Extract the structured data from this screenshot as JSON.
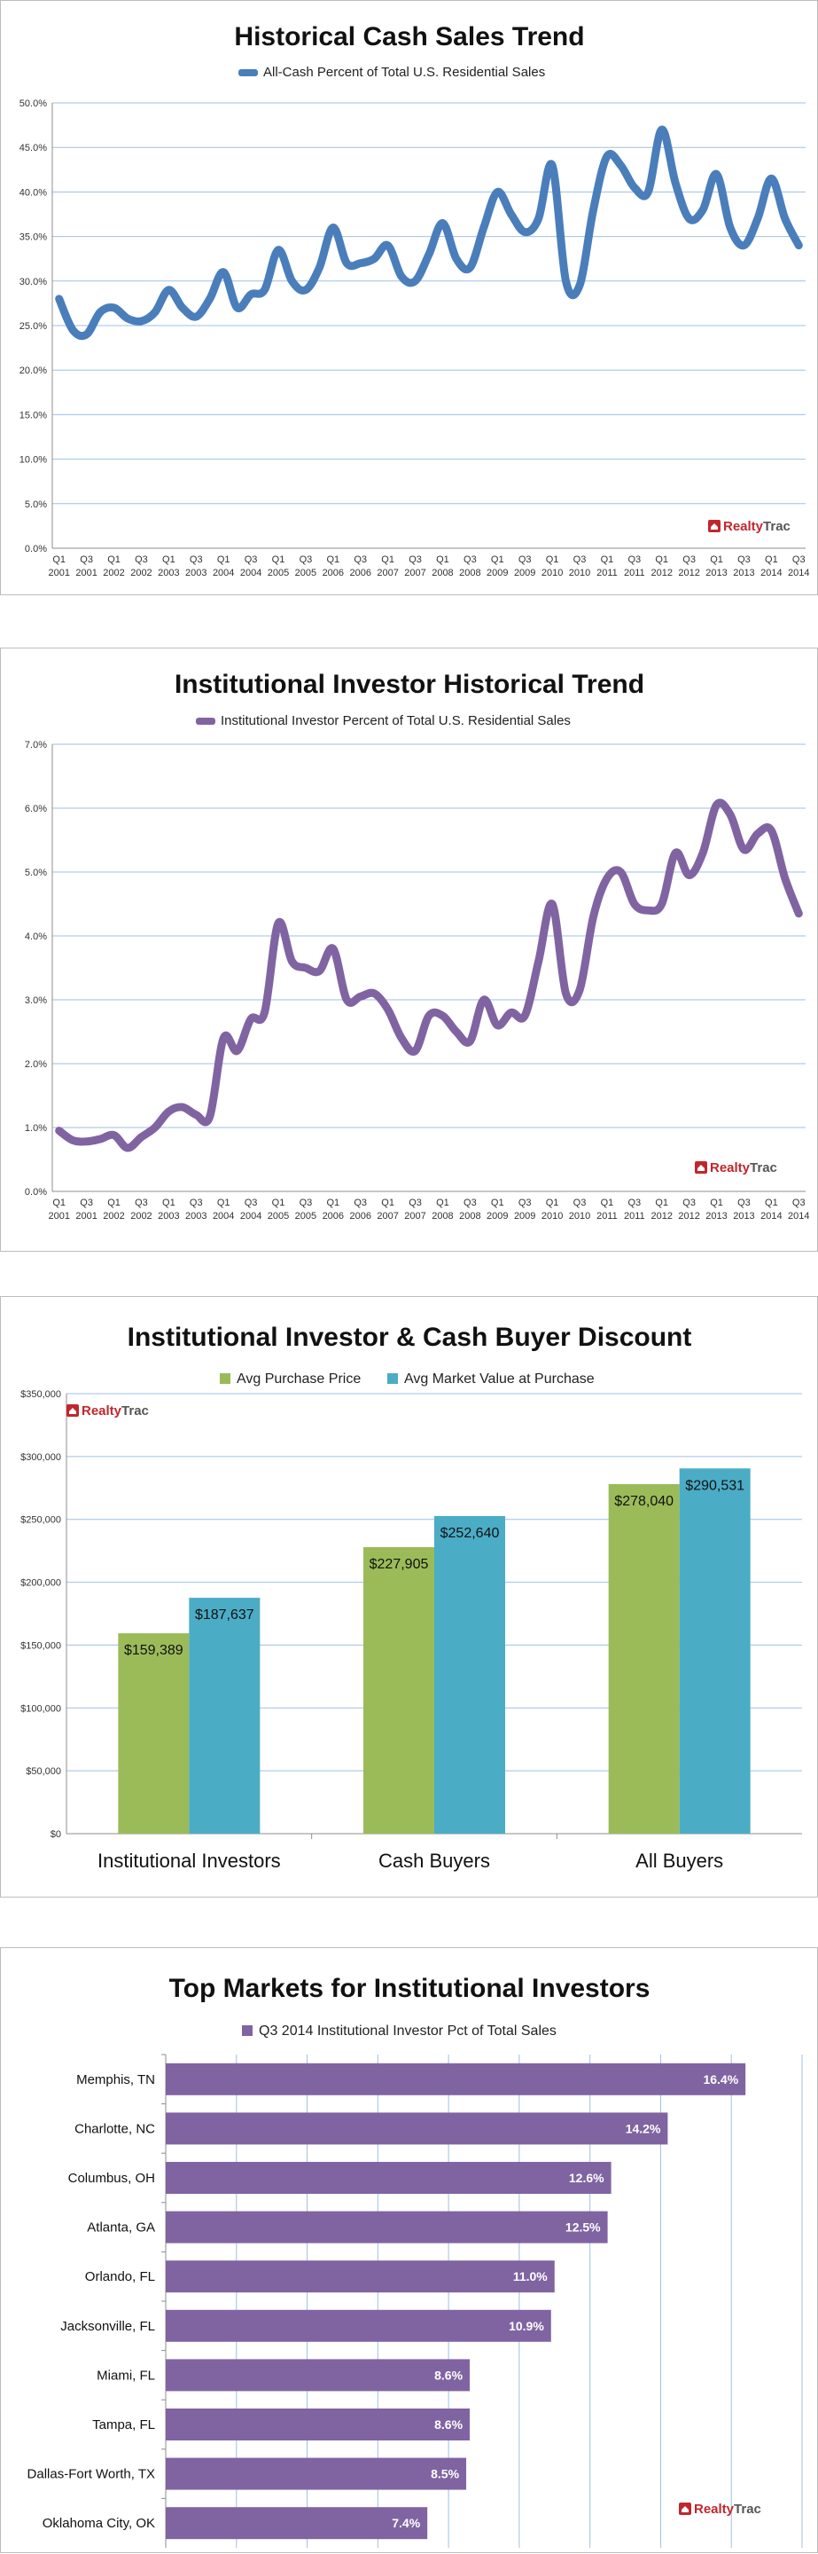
{
  "brand": {
    "realty": "Realty",
    "trac": "Trac"
  },
  "chart_data": [
    {
      "type": "line",
      "title": "Historical Cash Sales Trend",
      "legend_position": "top",
      "grid": true,
      "ylim": [
        0,
        50
      ],
      "yticks": [
        "0.0%",
        "5.0%",
        "10.0%",
        "15.0%",
        "20.0%",
        "25.0%",
        "30.0%",
        "35.0%",
        "40.0%",
        "45.0%",
        "50.0%"
      ],
      "x": [
        "Q1 2001",
        "Q2 2001",
        "Q3 2001",
        "Q4 2001",
        "Q1 2002",
        "Q2 2002",
        "Q3 2002",
        "Q4 2002",
        "Q1 2003",
        "Q2 2003",
        "Q3 2003",
        "Q4 2003",
        "Q1 2004",
        "Q2 2004",
        "Q3 2004",
        "Q4 2004",
        "Q1 2005",
        "Q2 2005",
        "Q3 2005",
        "Q4 2005",
        "Q1 2006",
        "Q2 2006",
        "Q3 2006",
        "Q4 2006",
        "Q1 2007",
        "Q2 2007",
        "Q3 2007",
        "Q4 2007",
        "Q1 2008",
        "Q2 2008",
        "Q3 2008",
        "Q4 2008",
        "Q1 2009",
        "Q2 2009",
        "Q3 2009",
        "Q4 2009",
        "Q1 2010",
        "Q2 2010",
        "Q3 2010",
        "Q4 2010",
        "Q1 2011",
        "Q2 2011",
        "Q3 2011",
        "Q4 2011",
        "Q1 2012",
        "Q2 2012",
        "Q3 2012",
        "Q4 2012",
        "Q1 2013",
        "Q2 2013",
        "Q3 2013",
        "Q4 2013",
        "Q1 2014",
        "Q2 2014",
        "Q3 2014"
      ],
      "xtick_labels": [
        [
          "Q1",
          "2001"
        ],
        [
          "Q3",
          "2001"
        ],
        [
          "Q1",
          "2002"
        ],
        [
          "Q3",
          "2002"
        ],
        [
          "Q1",
          "2003"
        ],
        [
          "Q3",
          "2003"
        ],
        [
          "Q1",
          "2004"
        ],
        [
          "Q3",
          "2004"
        ],
        [
          "Q1",
          "2005"
        ],
        [
          "Q3",
          "2005"
        ],
        [
          "Q1",
          "2006"
        ],
        [
          "Q3",
          "2006"
        ],
        [
          "Q1",
          "2007"
        ],
        [
          "Q3",
          "2007"
        ],
        [
          "Q1",
          "2008"
        ],
        [
          "Q3",
          "2008"
        ],
        [
          "Q1",
          "2009"
        ],
        [
          "Q3",
          "2009"
        ],
        [
          "Q1",
          "2010"
        ],
        [
          "Q3",
          "2010"
        ],
        [
          "Q1",
          "2011"
        ],
        [
          "Q3",
          "2011"
        ],
        [
          "Q1",
          "2012"
        ],
        [
          "Q3",
          "2012"
        ],
        [
          "Q1",
          "2013"
        ],
        [
          "Q3",
          "2013"
        ],
        [
          "Q1",
          "2014"
        ],
        [
          "Q3",
          "2014"
        ]
      ],
      "series": [
        {
          "name": "All-Cash Percent of Total U.S. Residential Sales",
          "color": "#4a7ebb",
          "values": [
            28.0,
            24.5,
            24.0,
            26.5,
            27.0,
            25.8,
            25.5,
            26.5,
            29.0,
            27.0,
            26.0,
            28.0,
            31.0,
            27.0,
            28.5,
            29.0,
            33.5,
            30.0,
            29.0,
            31.5,
            36.0,
            32.0,
            32.0,
            32.5,
            34.0,
            30.5,
            30.0,
            33.0,
            36.5,
            32.5,
            31.5,
            36.0,
            40.0,
            37.5,
            35.5,
            37.0,
            43.0,
            30.0,
            29.5,
            38.0,
            44.0,
            43.0,
            40.5,
            40.0,
            47.0,
            41.0,
            37.0,
            38.0,
            42.0,
            36.0,
            34.0,
            37.0,
            41.5,
            37.0,
            34.0
          ]
        }
      ]
    },
    {
      "type": "line",
      "title": "Institutional Investor Historical Trend",
      "legend_position": "top",
      "grid": true,
      "ylim": [
        0,
        7
      ],
      "yticks": [
        "0.0%",
        "1.0%",
        "2.0%",
        "3.0%",
        "4.0%",
        "5.0%",
        "6.0%",
        "7.0%"
      ],
      "x": [
        "Q1 2001",
        "Q2 2001",
        "Q3 2001",
        "Q4 2001",
        "Q1 2002",
        "Q2 2002",
        "Q3 2002",
        "Q4 2002",
        "Q1 2003",
        "Q2 2003",
        "Q3 2003",
        "Q4 2003",
        "Q1 2004",
        "Q2 2004",
        "Q3 2004",
        "Q4 2004",
        "Q1 2005",
        "Q2 2005",
        "Q3 2005",
        "Q4 2005",
        "Q1 2006",
        "Q2 2006",
        "Q3 2006",
        "Q4 2006",
        "Q1 2007",
        "Q2 2007",
        "Q3 2007",
        "Q4 2007",
        "Q1 2008",
        "Q2 2008",
        "Q3 2008",
        "Q4 2008",
        "Q1 2009",
        "Q2 2009",
        "Q3 2009",
        "Q4 2009",
        "Q1 2010",
        "Q2 2010",
        "Q3 2010",
        "Q4 2010",
        "Q1 2011",
        "Q2 2011",
        "Q3 2011",
        "Q4 2011",
        "Q1 2012",
        "Q2 2012",
        "Q3 2012",
        "Q4 2012",
        "Q1 2013",
        "Q2 2013",
        "Q3 2013",
        "Q4 2013",
        "Q1 2014",
        "Q2 2014",
        "Q3 2014"
      ],
      "xtick_labels": [
        [
          "Q1",
          "2001"
        ],
        [
          "Q3",
          "2001"
        ],
        [
          "Q1",
          "2002"
        ],
        [
          "Q3",
          "2002"
        ],
        [
          "Q1",
          "2003"
        ],
        [
          "Q3",
          "2003"
        ],
        [
          "Q1",
          "2004"
        ],
        [
          "Q3",
          "2004"
        ],
        [
          "Q1",
          "2005"
        ],
        [
          "Q3",
          "2005"
        ],
        [
          "Q1",
          "2006"
        ],
        [
          "Q3",
          "2006"
        ],
        [
          "Q1",
          "2007"
        ],
        [
          "Q3",
          "2007"
        ],
        [
          "Q1",
          "2008"
        ],
        [
          "Q3",
          "2008"
        ],
        [
          "Q1",
          "2009"
        ],
        [
          "Q3",
          "2009"
        ],
        [
          "Q1",
          "2010"
        ],
        [
          "Q3",
          "2010"
        ],
        [
          "Q1",
          "2011"
        ],
        [
          "Q3",
          "2011"
        ],
        [
          "Q1",
          "2012"
        ],
        [
          "Q3",
          "2012"
        ],
        [
          "Q1",
          "2013"
        ],
        [
          "Q3",
          "2013"
        ],
        [
          "Q1",
          "2014"
        ],
        [
          "Q3",
          "2014"
        ]
      ],
      "series": [
        {
          "name": "Institutional Investor Percent of Total U.S. Residential Sales",
          "color": "#8064a2",
          "values": [
            0.95,
            0.8,
            0.78,
            0.82,
            0.88,
            0.68,
            0.85,
            1.0,
            1.25,
            1.32,
            1.2,
            1.17,
            2.4,
            2.2,
            2.7,
            2.8,
            4.2,
            3.6,
            3.5,
            3.45,
            3.8,
            3.0,
            3.05,
            3.1,
            2.85,
            2.4,
            2.2,
            2.75,
            2.75,
            2.5,
            2.35,
            3.0,
            2.6,
            2.8,
            2.75,
            3.6,
            4.5,
            3.1,
            3.15,
            4.3,
            4.9,
            5.0,
            4.5,
            4.4,
            4.5,
            5.3,
            4.95,
            5.3,
            6.05,
            5.9,
            5.35,
            5.6,
            5.65,
            4.9,
            4.35
          ]
        }
      ]
    },
    {
      "type": "bar",
      "title": "Institutional Investor & Cash Buyer Discount",
      "legend_position": "top",
      "grid": true,
      "ylim": [
        0,
        350000
      ],
      "yticks": [
        "$0",
        "$50,000",
        "$100,000",
        "$150,000",
        "$200,000",
        "$250,000",
        "$300,000",
        "$350,000"
      ],
      "categories": [
        "Institutional Investors",
        "Cash Buyers",
        "All Buyers"
      ],
      "series": [
        {
          "name": "Avg Purchase Price",
          "color": "#9bbb59",
          "values": [
            159389,
            227905,
            278040
          ],
          "labels": [
            "$159,389",
            "$227,905",
            "$278,040"
          ]
        },
        {
          "name": "Avg Market Value at Purchase",
          "color": "#4bacc6",
          "values": [
            187637,
            252640,
            290531
          ],
          "labels": [
            "$187,637",
            "$252,640",
            "$290,531"
          ]
        }
      ]
    },
    {
      "type": "bar",
      "orientation": "horizontal",
      "title": "Top Markets for Institutional Investors",
      "legend_position": "top",
      "grid": true,
      "xlim": [
        0,
        18
      ],
      "categories": [
        "Memphis, TN",
        "Charlotte, NC",
        "Columbus, OH",
        "Atlanta, GA",
        "Orlando, FL",
        "Jacksonville, FL",
        "Miami, FL",
        "Tampa, FL",
        "Dallas-Fort Worth, TX",
        "Oklahoma City, OK"
      ],
      "series": [
        {
          "name": "Q3 2014 Institutional Investor Pct of Total Sales",
          "color": "#8064a2",
          "values": [
            16.4,
            14.2,
            12.6,
            12.5,
            11.0,
            10.9,
            8.6,
            8.6,
            8.5,
            7.4
          ],
          "labels": [
            "16.4%",
            "14.2%",
            "12.6%",
            "12.5%",
            "11.0%",
            "10.9%",
            "8.6%",
            "8.6%",
            "8.5%",
            "7.4%"
          ]
        }
      ]
    }
  ]
}
